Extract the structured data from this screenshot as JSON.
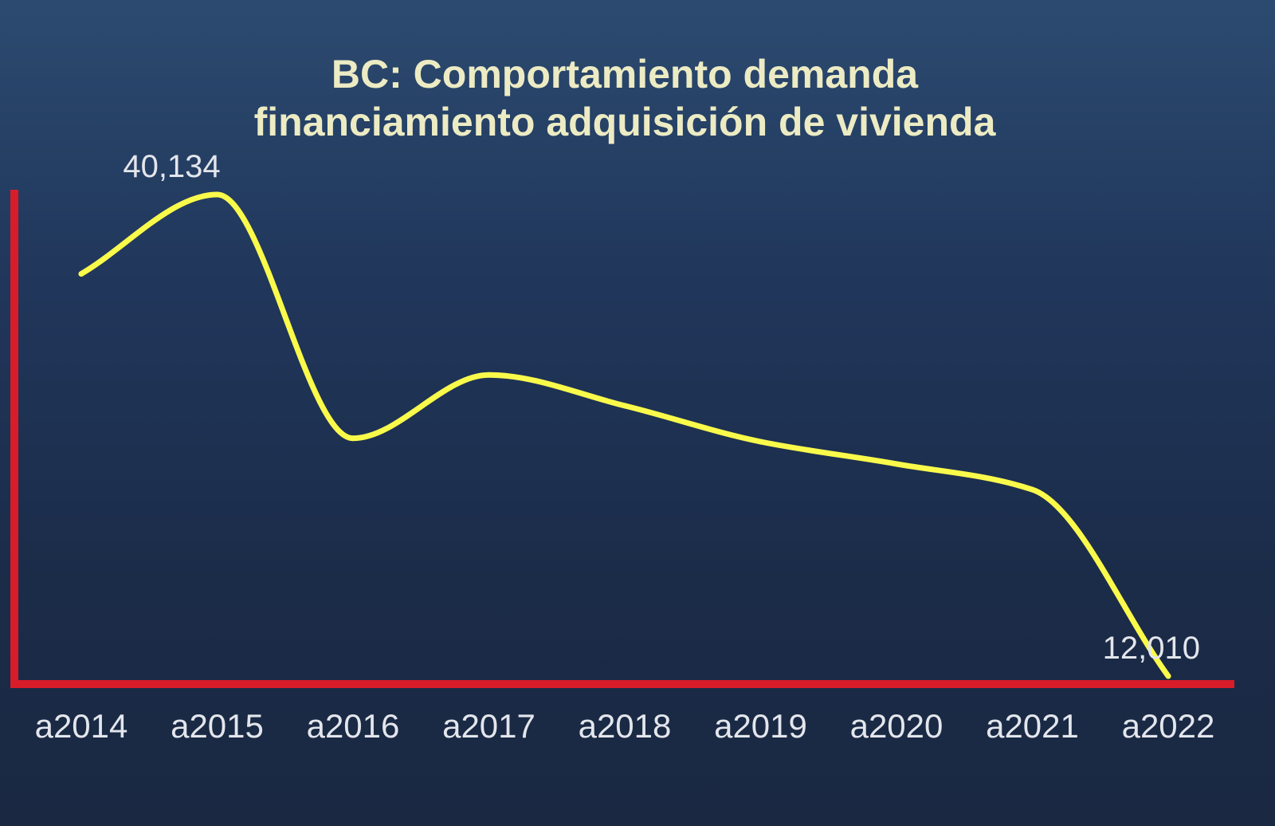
{
  "chart_data": {
    "type": "line",
    "title_lines": [
      "BC: Comportamiento demanda",
      "financiamiento adquisición de vivienda"
    ],
    "categories": [
      "a2014",
      "a2015",
      "a2016",
      "a2017",
      "a2018",
      "a2019",
      "a2020",
      "a2021",
      "a2022"
    ],
    "values": [
      35500,
      40134,
      25900,
      29600,
      27800,
      25700,
      24400,
      22900,
      12010
    ],
    "labeled_points": [
      {
        "index": 1,
        "text": "40,134"
      },
      {
        "index": 8,
        "text": "12,010"
      }
    ],
    "ylim": [
      12010,
      40134
    ],
    "grid": false,
    "legend": "none",
    "colors": {
      "line": "#fafa4b",
      "axes": "#d81c2a"
    }
  }
}
